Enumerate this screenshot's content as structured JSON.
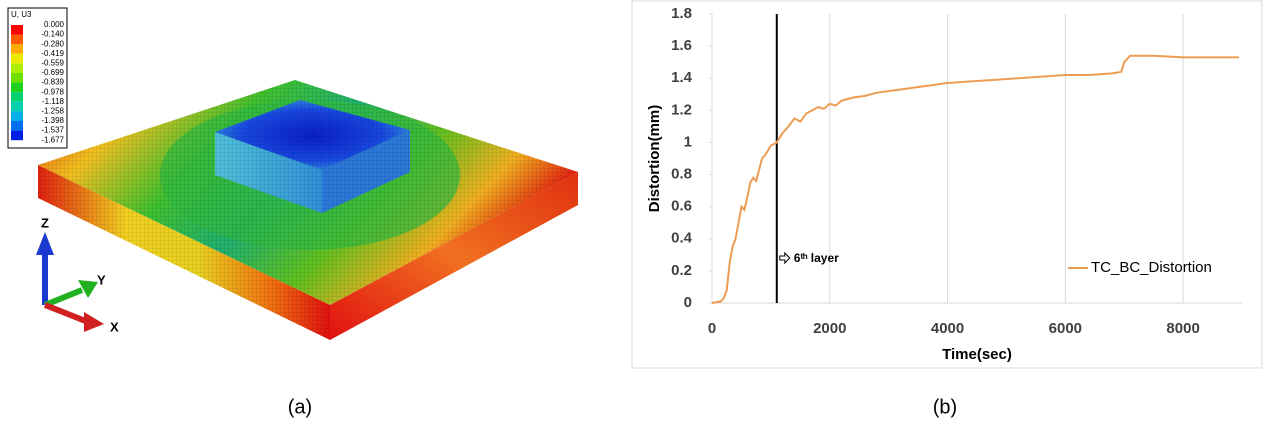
{
  "contour_legend": {
    "title": "U, U3",
    "labels": [
      "0.000",
      "-0.140",
      "-0.280",
      "-0.419",
      "-0.559",
      "-0.699",
      "-0.839",
      "-0.978",
      "-1.118",
      "-1.258",
      "-1.398",
      "-1.537",
      "-1.677"
    ]
  },
  "triad": {
    "x": "X",
    "y": "Y",
    "z": "Z"
  },
  "captions": [
    "(a)",
    "(b)"
  ],
  "chart_data": [
    {
      "type": "line",
      "x_label": "Time(sec)",
      "y_label": "Distortion(mm)",
      "x": [
        0,
        150,
        200,
        250,
        300,
        350,
        400,
        450,
        500,
        550,
        600,
        650,
        700,
        750,
        800,
        850,
        900,
        950,
        1000,
        1100,
        1200,
        1300,
        1400,
        1500,
        1600,
        1700,
        1800,
        1900,
        2000,
        2100,
        2200,
        2400,
        2600,
        2800,
        3000,
        3200,
        3400,
        3600,
        3800,
        4000,
        4400,
        4800,
        5200,
        5600,
        6000,
        6400,
        6800,
        6950,
        7000,
        7100,
        7500,
        8000,
        8500,
        8950
      ],
      "series": [
        {
          "name": "TC_BC_Distortion",
          "color": "#ED9C54",
          "values": [
            0,
            0.01,
            0.03,
            0.08,
            0.25,
            0.35,
            0.4,
            0.5,
            0.6,
            0.58,
            0.66,
            0.75,
            0.78,
            0.76,
            0.83,
            0.9,
            0.92,
            0.95,
            0.98,
            1.0,
            1.06,
            1.1,
            1.15,
            1.13,
            1.18,
            1.2,
            1.22,
            1.21,
            1.24,
            1.23,
            1.26,
            1.28,
            1.29,
            1.31,
            1.32,
            1.33,
            1.34,
            1.35,
            1.36,
            1.37,
            1.38,
            1.39,
            1.4,
            1.41,
            1.42,
            1.42,
            1.43,
            1.44,
            1.5,
            1.54,
            1.54,
            1.53,
            1.53,
            1.53
          ]
        }
      ],
      "xlim": [
        0,
        9000
      ],
      "xticks": [
        0,
        2000,
        4000,
        6000,
        8000
      ],
      "ylim": [
        0,
        1.8
      ],
      "yticks": [
        0,
        0.2,
        0.4,
        0.6,
        0.8,
        1,
        1.2,
        1.4,
        1.6,
        1.8
      ],
      "grid": "x",
      "legend": "lower right",
      "vline_x": 1100,
      "annotation": "6ᵗʰ layer"
    }
  ]
}
